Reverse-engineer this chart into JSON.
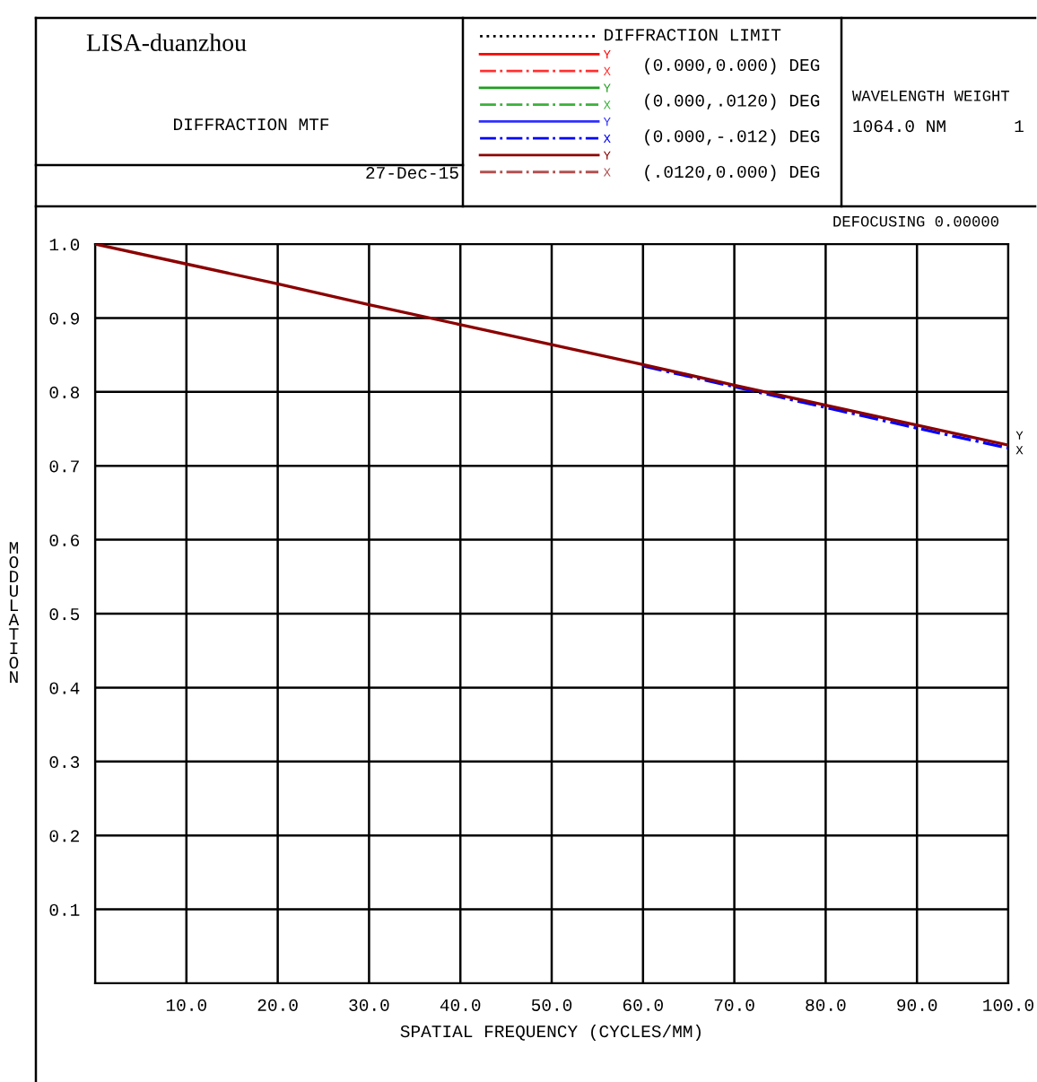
{
  "chart_data": {
    "type": "line",
    "title": "LISA-duanzhou",
    "subtitle": "DIFFRACTION MTF",
    "xlabel": "SPATIAL FREQUENCY (CYCLES/MM)",
    "ylabel": "MODULATION",
    "x": [
      0,
      10,
      20,
      30,
      40,
      50,
      60,
      70,
      80,
      90,
      100
    ],
    "series": [
      {
        "name": "DIFFRACTION LIMIT",
        "color": "#000000",
        "line_style": "dotted",
        "values": [
          null,
          null,
          null,
          null,
          null,
          null,
          null,
          null,
          null,
          null,
          null
        ]
      },
      {
        "name": "Y",
        "color": "#ff0000",
        "line_style": "solid",
        "values": [
          null,
          null,
          null,
          null,
          null,
          null,
          null,
          null,
          null,
          null,
          null
        ]
      },
      {
        "name": "X",
        "color": "#ff3030",
        "line_style": "dashdot",
        "values": [
          null,
          null,
          null,
          null,
          null,
          null,
          null,
          null,
          null,
          null,
          null
        ]
      },
      {
        "name": "Y",
        "color": "#1e9e1e",
        "line_style": "solid",
        "values": [
          null,
          null,
          null,
          null,
          null,
          null,
          null,
          null,
          null,
          null,
          null
        ]
      },
      {
        "name": "X",
        "color": "#3cb03c",
        "line_style": "dashdot",
        "values": [
          null,
          null,
          null,
          null,
          null,
          null,
          null,
          null,
          null,
          null,
          null
        ]
      },
      {
        "name": "Y",
        "color": "#3030ff",
        "line_style": "solid",
        "values": [
          null,
          null,
          null,
          null,
          null,
          null,
          null,
          null,
          null,
          null,
          null
        ]
      },
      {
        "name": "X",
        "color": "#0000ff",
        "line_style": "dashdot",
        "values": [
          null,
          null,
          null,
          null,
          null,
          null,
          0.835,
          0.807,
          0.779,
          0.751,
          0.724
        ]
      },
      {
        "name": "Y",
        "color": "#8b0000",
        "line_style": "solid",
        "values": [
          1.0,
          0.973,
          0.946,
          0.918,
          0.891,
          0.864,
          0.837,
          0.809,
          0.782,
          0.755,
          0.728
        ]
      },
      {
        "name": "X",
        "color": "#b05050",
        "line_style": "dashdot",
        "values": [
          null,
          null,
          null,
          null,
          null,
          null,
          null,
          null,
          null,
          null,
          null
        ]
      }
    ],
    "annotations": [
      "(0.000,0.000) DEG",
      "(0.000,.0120) DEG",
      "(0.000,-.012) DEG",
      "(.0120,0.000) DEG",
      "27-Dec-15",
      "WAVELENGTH WEIGHT",
      "1064.0 NM",
      "1",
      "DEFOCUSING 0.00000",
      {
        "text": "Y",
        "x": 100,
        "y": 0.74
      },
      {
        "text": "X",
        "x": 100,
        "y": 0.72
      }
    ],
    "xlim": [
      0,
      100
    ],
    "ylim": [
      0,
      1.0
    ],
    "xticks": [
      {
        "value": 0,
        "label": null
      },
      {
        "value": 10,
        "label": "10.0"
      },
      {
        "value": 20,
        "label": "20.0"
      },
      {
        "value": 30,
        "label": "30.0"
      },
      {
        "value": 40,
        "label": "40.0"
      },
      {
        "value": 50,
        "label": "50.0"
      },
      {
        "value": 60,
        "label": "60.0"
      },
      {
        "value": 70,
        "label": "70.0"
      },
      {
        "value": 80,
        "label": "80.0"
      },
      {
        "value": 90,
        "label": "90.0"
      },
      {
        "value": 100,
        "label": "100.0"
      }
    ],
    "yticks": [
      {
        "value": 0,
        "label": null
      },
      0.1,
      0.2,
      0.3,
      0.4,
      0.5,
      0.6,
      0.7,
      0.8,
      0.9,
      {
        "value": 1.0,
        "label": "1.0"
      }
    ],
    "grid": true,
    "legend": "top",
    "marker": "none"
  }
}
